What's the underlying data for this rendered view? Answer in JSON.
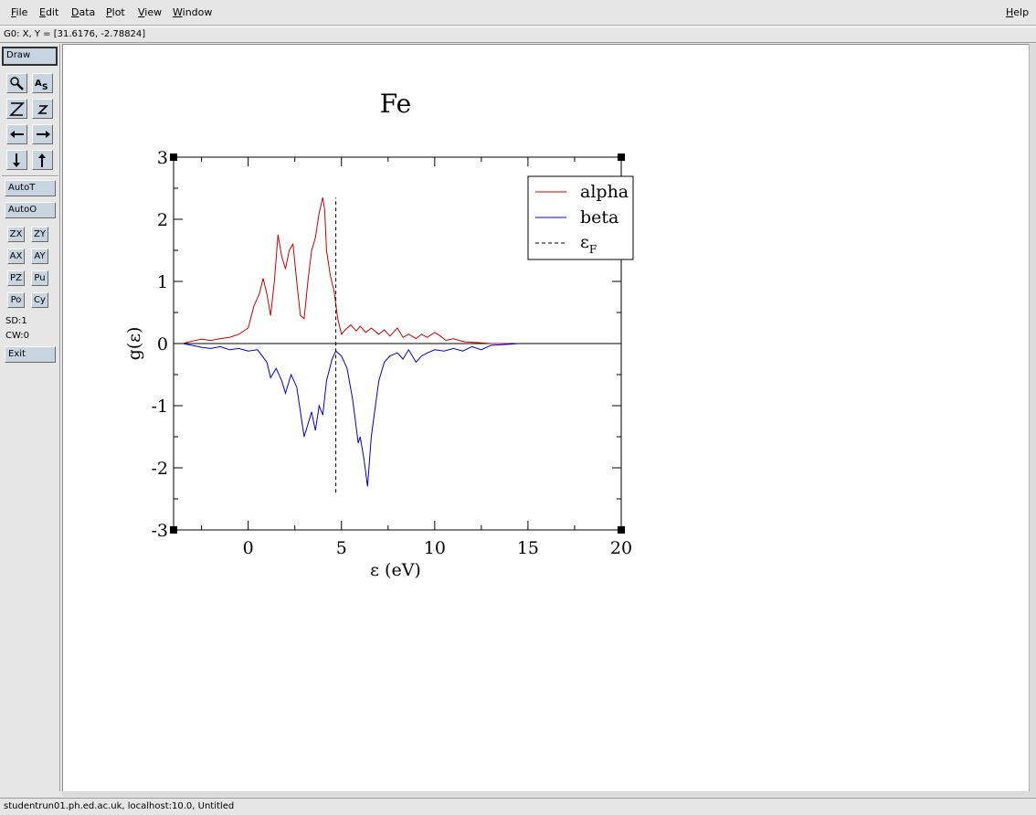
{
  "menubar": {
    "items": [
      "File",
      "Edit",
      "Data",
      "Plot",
      "View",
      "Window"
    ],
    "help": "Help"
  },
  "locator": "G0: X, Y = [31.6176, -2.78824]",
  "toolbar": {
    "draw": "Draw",
    "autot": "AutoT",
    "autoo": "AutoO",
    "small_buttons": [
      "ZX",
      "ZY",
      "AX",
      "AY",
      "PZ",
      "Pu",
      "Po",
      "Cy"
    ],
    "sd": "SD:1",
    "cw": "CW:0",
    "exit": "Exit",
    "icons": [
      "zoom-icon",
      "autoscale-icon",
      "zoom-in-icon",
      "zoom-out-icon",
      "scroll-left-icon",
      "scroll-right-icon",
      "scroll-down-icon",
      "scroll-up-icon"
    ]
  },
  "status": "studentrun01.ph.ed.ac.uk, localhost:10.0, Untitled",
  "colors": {
    "alpha": "#cc0000",
    "beta": "#0000cc",
    "background": "#e6e6e6",
    "button": "#c8d4e0"
  },
  "chart_data": {
    "type": "line",
    "title": "Fe",
    "xlabel": "ε (eV)",
    "ylabel": "g(ε)",
    "xlim": [
      -4,
      20
    ],
    "ylim": [
      -3,
      3
    ],
    "xticks": [
      0,
      5,
      10,
      15,
      20
    ],
    "yticks": [
      -3,
      -2,
      -1,
      0,
      1,
      2,
      3
    ],
    "legend_position": "top-right",
    "fermi_level": 4.7,
    "series": [
      {
        "name": "alpha",
        "color": "#cc0000",
        "style": "solid",
        "x": [
          -3.5,
          -3.0,
          -2.5,
          -2.0,
          -1.5,
          -1.0,
          -0.5,
          0.0,
          0.3,
          0.6,
          0.8,
          1.0,
          1.2,
          1.4,
          1.6,
          1.8,
          2.0,
          2.2,
          2.4,
          2.6,
          2.8,
          3.0,
          3.2,
          3.4,
          3.6,
          3.8,
          4.0,
          4.1,
          4.2,
          4.4,
          4.6,
          4.8,
          5.0,
          5.2,
          5.5,
          5.8,
          6.0,
          6.3,
          6.6,
          7.0,
          7.3,
          7.6,
          8.0,
          8.3,
          8.6,
          9.0,
          9.3,
          9.6,
          10.0,
          10.3,
          10.6,
          11.0,
          11.3,
          11.6,
          12.0,
          12.5,
          13.0,
          13.5,
          14.0
        ],
        "values": [
          0.0,
          0.04,
          0.07,
          0.05,
          0.08,
          0.1,
          0.15,
          0.25,
          0.6,
          0.8,
          1.05,
          0.8,
          0.45,
          1.0,
          1.75,
          1.4,
          1.2,
          1.5,
          1.6,
          1.0,
          0.45,
          0.4,
          1.0,
          1.5,
          1.7,
          2.1,
          2.35,
          2.15,
          1.5,
          1.1,
          0.85,
          0.4,
          0.15,
          0.22,
          0.3,
          0.2,
          0.28,
          0.18,
          0.25,
          0.15,
          0.22,
          0.12,
          0.25,
          0.1,
          0.15,
          0.08,
          0.15,
          0.1,
          0.18,
          0.12,
          0.05,
          0.08,
          0.05,
          0.03,
          0.02,
          0.01,
          0.0,
          0.0,
          0.0
        ]
      },
      {
        "name": "beta",
        "color": "#0000cc",
        "style": "solid",
        "x": [
          -3.5,
          -3.0,
          -2.5,
          -2.0,
          -1.5,
          -1.0,
          -0.5,
          0.0,
          0.5,
          1.0,
          1.2,
          1.5,
          1.8,
          2.0,
          2.3,
          2.6,
          3.0,
          3.2,
          3.4,
          3.6,
          3.8,
          4.0,
          4.2,
          4.5,
          4.7,
          5.0,
          5.3,
          5.6,
          5.9,
          6.0,
          6.2,
          6.4,
          6.6,
          7.0,
          7.3,
          7.6,
          8.0,
          8.3,
          8.6,
          9.0,
          9.3,
          9.6,
          10.0,
          10.5,
          11.0,
          11.5,
          12.0,
          12.5,
          13.0,
          13.5,
          14.0,
          14.5
        ],
        "values": [
          0.0,
          -0.03,
          -0.06,
          -0.08,
          -0.05,
          -0.1,
          -0.08,
          -0.12,
          -0.1,
          -0.3,
          -0.55,
          -0.4,
          -0.6,
          -0.8,
          -0.5,
          -0.7,
          -1.5,
          -1.3,
          -1.1,
          -1.4,
          -1.0,
          -1.15,
          -0.6,
          -0.25,
          -0.12,
          -0.2,
          -0.4,
          -0.9,
          -1.6,
          -1.5,
          -1.85,
          -2.3,
          -1.5,
          -0.6,
          -0.3,
          -0.2,
          -0.15,
          -0.25,
          -0.1,
          -0.3,
          -0.2,
          -0.15,
          -0.1,
          -0.12,
          -0.08,
          -0.12,
          -0.05,
          -0.1,
          -0.03,
          -0.02,
          -0.01,
          0.0
        ]
      },
      {
        "name": "εF",
        "color": "#000000",
        "style": "dashed",
        "x": [
          4.7,
          4.7
        ],
        "values": [
          -2.4,
          2.35
        ]
      }
    ]
  }
}
